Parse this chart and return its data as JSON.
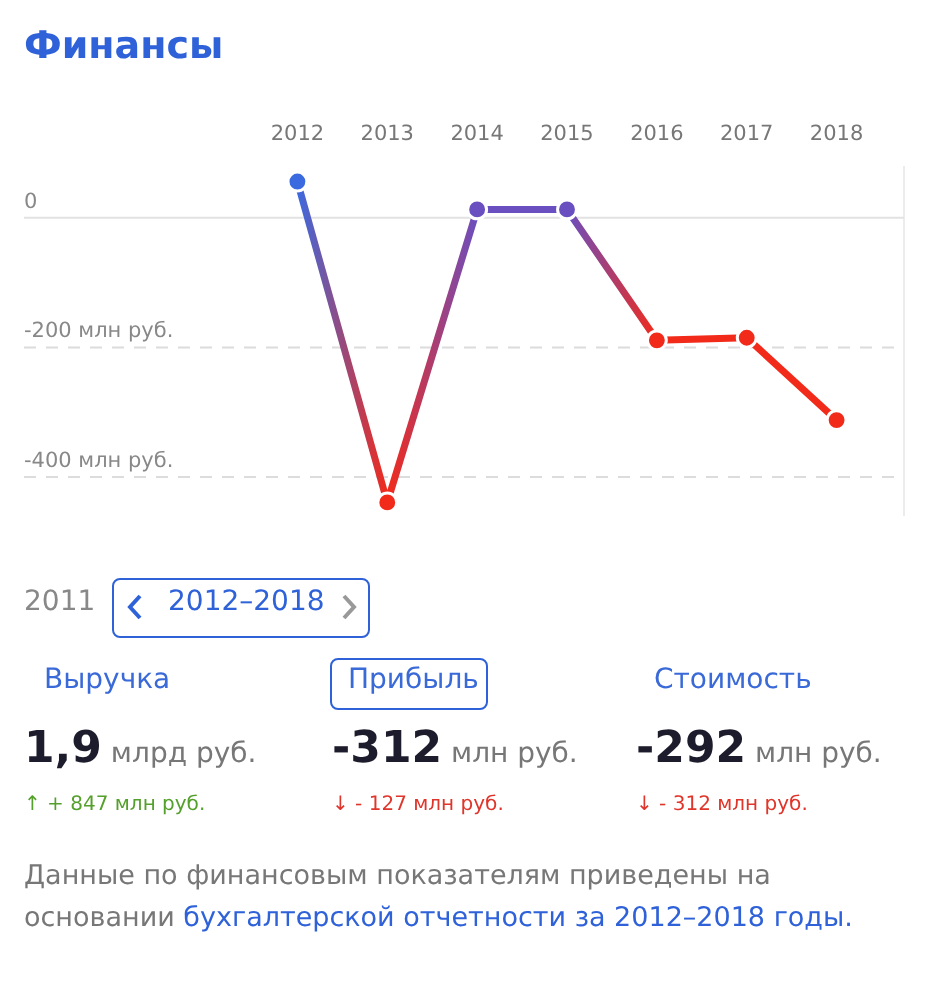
{
  "chart_data": {
    "type": "line",
    "title": "Финансы",
    "categories": [
      "2012",
      "2013",
      "2014",
      "2015",
      "2016",
      "2017",
      "2018"
    ],
    "series": [
      {
        "colors": [
          "#3b6ae0",
          "#f22a1a",
          "#6a4fc0",
          "#6a4fc0",
          "#f22a1a",
          "#f22a1a",
          "#f22a1a"
        ],
        "values": [
          56,
          -439,
          13,
          13,
          -189,
          -185,
          -312
        ]
      }
    ],
    "yticks": [
      0,
      {
        "value": -200,
        "label": "-200 млн руб."
      },
      {
        "value": -400,
        "label": "-400 млн руб."
      }
    ],
    "ylim": [
      -460,
      80
    ],
    "grid": "y",
    "marker": "circle",
    "annotations": [
      "2011",
      "2012–2018",
      "Выручка",
      "1,9",
      "млрд руб.",
      "↑ + 847 млн руб.",
      "Прибыль",
      "-312",
      "млн руб.",
      "↓ - 127 млн руб.",
      "Стоимость",
      "-292",
      "млн руб.",
      "↓ - 312 млн руб.",
      "Данные по финансовым показателям приведены на основании",
      "бухгалтерской отчетности за 2012–2018 годы."
    ]
  }
}
